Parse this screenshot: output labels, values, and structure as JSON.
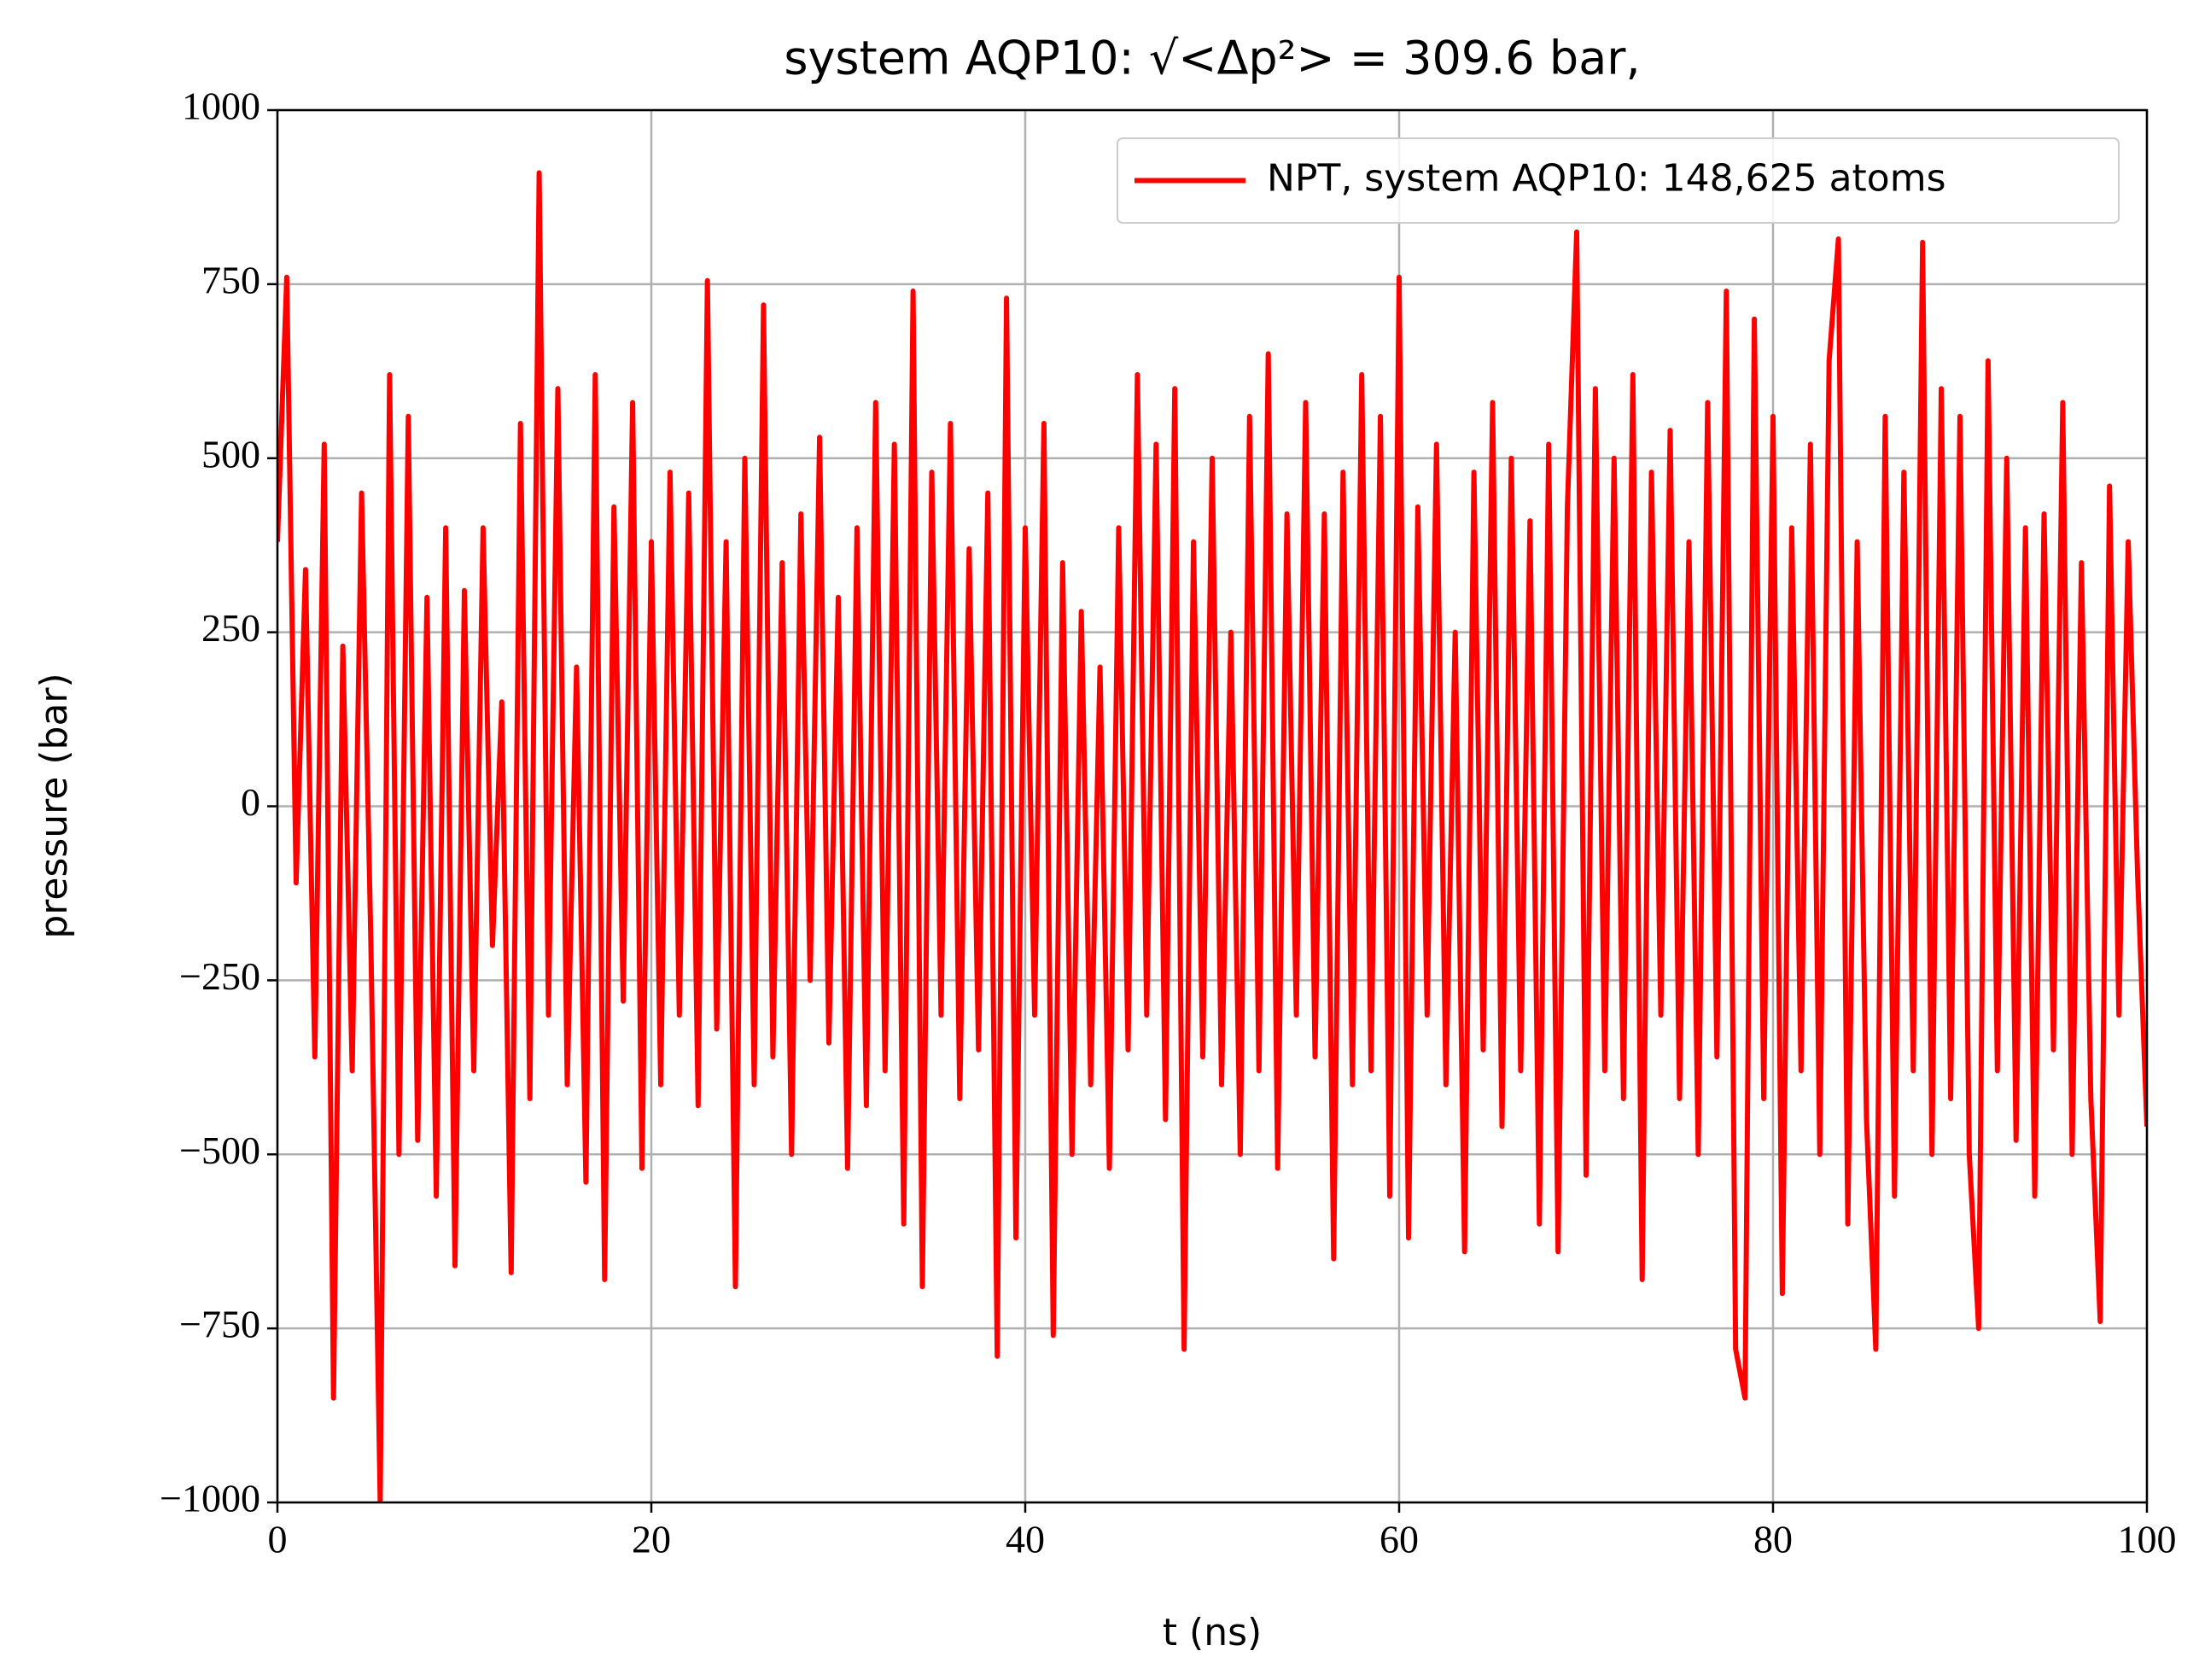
{
  "chart_data": {
    "type": "line",
    "title": "system AQP10: √<Δp²> = 309.6 bar,",
    "xlabel": "t (ns)",
    "ylabel": "pressure (bar)",
    "xlim": [
      0,
      100
    ],
    "ylim": [
      -1000,
      1000
    ],
    "xticks": [
      0,
      20,
      40,
      60,
      80,
      100
    ],
    "yticks": [
      {
        "value": -1000,
        "label": "−1000"
      },
      {
        "value": -750,
        "label": "−750"
      },
      {
        "value": -500,
        "label": "−500"
      },
      {
        "value": -250,
        "label": "−250"
      },
      0,
      250,
      500,
      750,
      1000
    ],
    "grid": true,
    "legend": "upper right",
    "x": [
      0,
      0.5,
      1,
      1.5,
      2,
      2.5,
      3,
      3.5,
      4,
      4.5,
      5,
      5.5,
      6,
      6.5,
      7,
      7.5,
      8,
      8.5,
      9,
      9.5,
      10,
      10.5,
      11,
      11.5,
      12,
      12.5,
      13,
      13.5,
      14,
      14.5,
      15,
      15.5,
      16,
      16.5,
      17,
      17.5,
      18,
      18.5,
      19,
      19.5,
      20,
      20.5,
      21,
      21.5,
      22,
      22.5,
      23,
      23.5,
      24,
      24.5,
      25,
      25.5,
      26,
      26.5,
      27,
      27.5,
      28,
      28.5,
      29,
      29.5,
      30,
      30.5,
      31,
      31.5,
      32,
      32.5,
      33,
      33.5,
      34,
      34.5,
      35,
      35.5,
      36,
      36.5,
      37,
      37.5,
      38,
      38.5,
      39,
      39.5,
      40,
      40.5,
      41,
      41.5,
      42,
      42.5,
      43,
      43.5,
      44,
      44.5,
      45,
      45.5,
      46,
      46.5,
      47,
      47.5,
      48,
      48.5,
      49,
      49.5,
      50,
      50.5,
      51,
      51.5,
      52,
      52.5,
      53,
      53.5,
      54,
      54.5,
      55,
      55.5,
      56,
      56.5,
      57,
      57.5,
      58,
      58.5,
      59,
      59.5,
      60,
      60.5,
      61,
      61.5,
      62,
      62.5,
      63,
      63.5,
      64,
      64.5,
      65,
      65.5,
      66,
      66.5,
      67,
      67.5,
      68,
      68.5,
      69,
      69.5,
      70,
      70.5,
      71,
      71.5,
      72,
      72.5,
      73,
      73.5,
      74,
      74.5,
      75,
      75.5,
      76,
      76.5,
      77,
      77.5,
      78,
      78.5,
      79,
      79.5,
      80,
      80.5,
      81,
      81.5,
      82,
      82.5,
      83,
      83.5,
      84,
      84.5,
      85,
      85.5,
      86,
      86.5,
      87,
      87.5,
      88,
      88.5,
      89,
      89.5,
      90,
      90.5,
      91,
      91.5,
      92,
      92.5,
      93,
      93.5,
      94,
      94.5,
      95,
      95.5,
      96,
      96.5,
      97,
      97.5,
      98,
      98.5,
      99,
      99.5,
      100
    ],
    "series": [
      {
        "name": "NPT, system AQP10: 148,625 atoms",
        "color": "#ff0000",
        "values": [
          380,
          760,
          -110,
          340,
          -360,
          520,
          -850,
          230,
          -380,
          450,
          -200,
          -1000,
          620,
          -500,
          560,
          -480,
          300,
          -560,
          400,
          -660,
          310,
          -380,
          400,
          -200,
          150,
          -670,
          550,
          -420,
          910,
          -300,
          600,
          -400,
          200,
          -540,
          620,
          -680,
          430,
          -280,
          580,
          -520,
          380,
          -400,
          480,
          -300,
          450,
          -430,
          755,
          -320,
          380,
          -690,
          500,
          -400,
          720,
          -360,
          350,
          -500,
          420,
          -250,
          530,
          -340,
          300,
          -520,
          400,
          -430,
          580,
          -380,
          520,
          -600,
          740,
          -690,
          480,
          -300,
          550,
          -420,
          370,
          -350,
          450,
          -790,
          730,
          -620,
          400,
          -300,
          550,
          -760,
          350,
          -500,
          280,
          -400,
          200,
          -520,
          400,
          -350,
          620,
          -300,
          520,
          -450,
          600,
          -780,
          380,
          -360,
          500,
          -400,
          250,
          -500,
          560,
          -380,
          650,
          -520,
          420,
          -300,
          580,
          -360,
          420,
          -650,
          480,
          -400,
          620,
          -380,
          560,
          -560,
          760,
          -620,
          430,
          -300,
          520,
          -400,
          250,
          -640,
          480,
          -350,
          580,
          -460,
          500,
          -380,
          410,
          -600,
          520,
          -640,
          430,
          825,
          -530,
          600,
          -380,
          500,
          -420,
          620,
          -680,
          480,
          -300,
          540,
          -420,
          380,
          -500,
          580,
          -360,
          740,
          -780,
          -850,
          700,
          -420,
          560,
          -700,
          400,
          -380,
          520,
          -500,
          640,
          815,
          -600,
          380,
          -450,
          -780,
          560,
          -560,
          480,
          -380,
          810,
          -500,
          600,
          -420,
          560,
          -500,
          -750,
          640,
          -380,
          500,
          -480,
          400,
          -560,
          420,
          -350,
          580,
          -500,
          350,
          -420,
          -740,
          460,
          -300,
          380,
          -100,
          -460
        ]
      }
    ]
  }
}
